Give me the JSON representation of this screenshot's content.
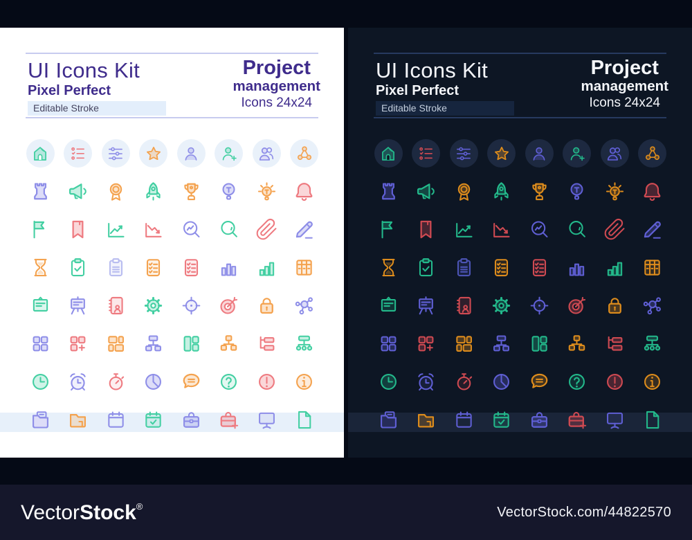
{
  "header": {
    "title": "UI Icons Kit",
    "subtitle": "Pixel Perfect",
    "badge": "Editable Stroke",
    "product1": "Project",
    "product2": "management",
    "product3": "Icons 24x24"
  },
  "watermark": {
    "brand_light": "Vector",
    "brand_bold": "Stock",
    "registered": "®",
    "url": "VectorStock.com/44822570"
  },
  "themes": {
    "light": {
      "pbg": "#ffffff",
      "text": "#3f2c8c",
      "rule": "#c7cbef",
      "badge_bg": "#e3eefb",
      "badge_text": "#45445f",
      "circle": "#e9f1fa",
      "band": "#e7f0fa",
      "palette": {
        "green": "#43cfa2",
        "red": "#ee7a80",
        "purple": "#8e8ee8",
        "orange": "#f4a24e",
        "lavender": "#b9bdf0"
      }
    },
    "dark": {
      "pbg": "#0d1624",
      "text": "#f4f6fa",
      "rule": "#273a60",
      "badge_bg": "#16253e",
      "badge_text": "#c3cedd",
      "circle": "#1d2940",
      "band": "#1a2539",
      "palette": {
        "green": "#23b98b",
        "red": "#cf4a52",
        "purple": "#5f5fd4",
        "orange": "#dd8c1c",
        "lavender": "#4c54b5"
      }
    }
  },
  "icons": {
    "rows": [
      [
        {
          "name": "home",
          "color": "green"
        },
        {
          "name": "to-do",
          "color": "red"
        },
        {
          "name": "sliders",
          "color": "purple"
        },
        {
          "name": "star",
          "color": "orange"
        },
        {
          "name": "user",
          "color": "purple"
        },
        {
          "name": "user-plus",
          "color": "green"
        },
        {
          "name": "users",
          "color": "purple"
        },
        {
          "name": "share",
          "color": "orange"
        }
      ],
      [
        {
          "name": "rook",
          "color": "purple"
        },
        {
          "name": "megaphone",
          "color": "green"
        },
        {
          "name": "medal",
          "color": "orange"
        },
        {
          "name": "rocket",
          "color": "green"
        },
        {
          "name": "trophy",
          "color": "orange"
        },
        {
          "name": "idea",
          "color": "purple"
        },
        {
          "name": "bright-idea",
          "color": "orange"
        },
        {
          "name": "bell",
          "color": "red"
        }
      ],
      [
        {
          "name": "flag",
          "color": "green"
        },
        {
          "name": "bookmark",
          "color": "red"
        },
        {
          "name": "chart-up",
          "color": "green"
        },
        {
          "name": "chart-down",
          "color": "red"
        },
        {
          "name": "search-stats",
          "color": "purple"
        },
        {
          "name": "search",
          "color": "green"
        },
        {
          "name": "paperclip",
          "color": "red"
        },
        {
          "name": "pencil",
          "color": "purple"
        }
      ],
      [
        {
          "name": "hourglass",
          "color": "orange"
        },
        {
          "name": "clipboard-check",
          "color": "green"
        },
        {
          "name": "clipboard-doc",
          "color": "lavender"
        },
        {
          "name": "task-list",
          "color": "orange"
        },
        {
          "name": "task-list",
          "color": "red"
        },
        {
          "name": "bar-chart",
          "color": "purple"
        },
        {
          "name": "growth-chart",
          "color": "green"
        },
        {
          "name": "table",
          "color": "orange"
        }
      ],
      [
        {
          "name": "board",
          "color": "green"
        },
        {
          "name": "easel",
          "color": "purple"
        },
        {
          "name": "address-book",
          "color": "red"
        },
        {
          "name": "gear",
          "color": "green"
        },
        {
          "name": "crosshair",
          "color": "purple"
        },
        {
          "name": "dartboard",
          "color": "red"
        },
        {
          "name": "lock",
          "color": "orange"
        },
        {
          "name": "hub",
          "color": "purple"
        }
      ],
      [
        {
          "name": "grid",
          "color": "purple"
        },
        {
          "name": "grid-add",
          "color": "red"
        },
        {
          "name": "dashboard",
          "color": "orange"
        },
        {
          "name": "sitemap",
          "color": "purple"
        },
        {
          "name": "layout",
          "color": "green"
        },
        {
          "name": "org-chart",
          "color": "orange"
        },
        {
          "name": "tree-list",
          "color": "red"
        },
        {
          "name": "network-tree",
          "color": "green"
        }
      ],
      [
        {
          "name": "clock",
          "color": "green"
        },
        {
          "name": "alarm",
          "color": "purple"
        },
        {
          "name": "stopwatch",
          "color": "red"
        },
        {
          "name": "pie",
          "color": "purple"
        },
        {
          "name": "chat",
          "color": "orange"
        },
        {
          "name": "question",
          "color": "green"
        },
        {
          "name": "exclamation",
          "color": "red"
        },
        {
          "name": "info",
          "color": "orange"
        }
      ],
      [
        {
          "name": "folder-doc",
          "color": "purple"
        },
        {
          "name": "folder",
          "color": "orange"
        },
        {
          "name": "calendar",
          "color": "purple"
        },
        {
          "name": "calendar-check",
          "color": "green"
        },
        {
          "name": "briefcase",
          "color": "purple"
        },
        {
          "name": "briefcase-add",
          "color": "red"
        },
        {
          "name": "monitor",
          "color": "purple"
        },
        {
          "name": "file",
          "color": "green"
        }
      ]
    ]
  }
}
